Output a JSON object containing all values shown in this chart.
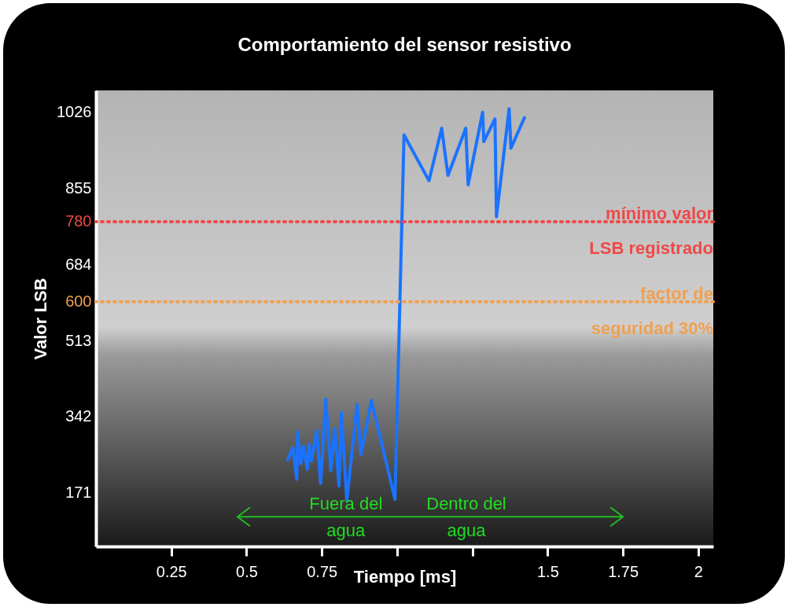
{
  "chart_data": {
    "type": "line",
    "title": "Comportamiento del sensor resistivo",
    "xlabel": "Tiempo [ms]",
    "ylabel": "Valor LSB",
    "xlim": [
      0,
      2.05
    ],
    "ylim": [
      50,
      1075
    ],
    "xticks": [
      0.25,
      0.5,
      0.75,
      {
        "value": 1,
        "label": null
      },
      {
        "value": 1.25,
        "label": null
      },
      1.5,
      1.75,
      2
    ],
    "yticks": [
      171,
      342,
      513,
      600,
      684,
      780,
      855,
      1026
    ],
    "grid": false,
    "marker": "none",
    "line_style": "solid",
    "series": [
      {
        "color": "#1a73ff",
        "x": [
          0.637,
          0.654,
          0.667,
          0.67,
          0.68,
          0.689,
          0.702,
          0.707,
          0.715,
          0.733,
          0.746,
          0.763,
          0.78,
          0.793,
          0.807,
          0.815,
          0.833,
          0.867,
          0.88,
          0.915,
          0.993,
          1.023,
          1.106,
          1.148,
          1.169,
          1.228,
          1.236,
          1.284,
          1.288,
          1.325,
          1.33,
          1.372,
          1.378,
          1.423
        ],
        "values": [
          245,
          272,
          201,
          307,
          236,
          274,
          224,
          280,
          242,
          310,
          192,
          381,
          221,
          316,
          186,
          351,
          153,
          369,
          257,
          378,
          156,
          975,
          872,
          990,
          884,
          990,
          863,
          1026,
          960,
          1011,
          791,
          1034,
          945,
          1014
        ]
      }
    ],
    "ref_lines": [
      {
        "axis": "y",
        "value": 780,
        "label": "mínimo valor LSB registrado",
        "color": "#f04848",
        "line_style": "dotted"
      },
      {
        "axis": "y",
        "value": 600,
        "label": "factor de seguridad 30%",
        "color": "#f0a050",
        "line_style": "dotted"
      }
    ],
    "annotations": [
      "Fuera del agua",
      "Dentro del agua"
    ]
  }
}
